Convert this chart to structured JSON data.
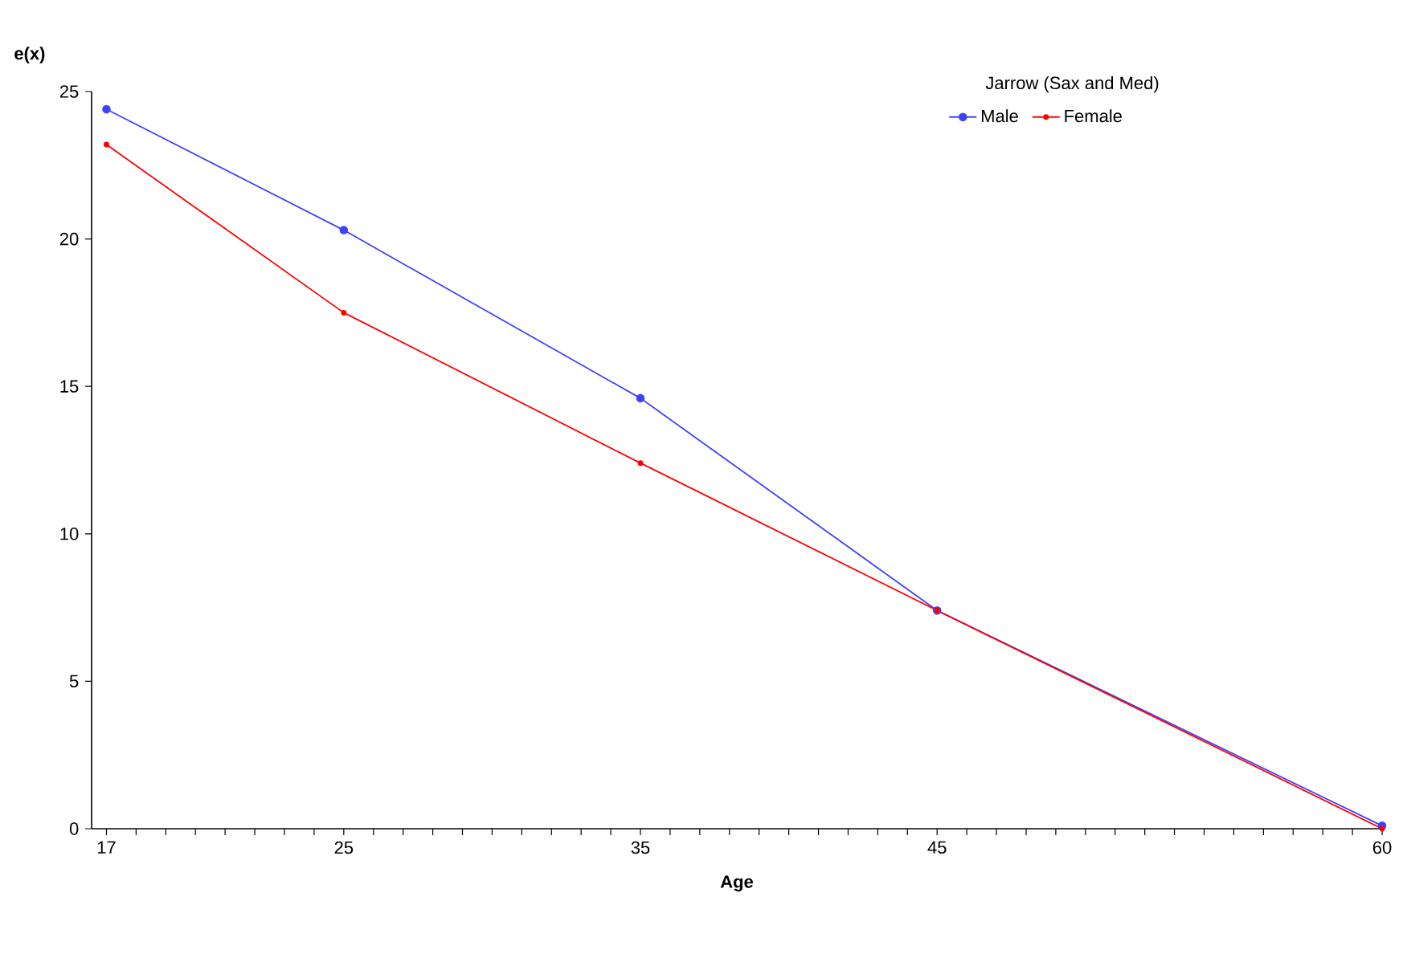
{
  "chart_data": {
    "type": "line",
    "xlabel": "Age",
    "ylabel": "e(x)",
    "legend_title": "Jarrow (Sax and Med)",
    "x": [
      17,
      25,
      35,
      45,
      60
    ],
    "series": [
      {
        "name": "Male",
        "color": "#4040ff",
        "values": [
          24.4,
          20.3,
          14.6,
          7.4,
          0.1
        ]
      },
      {
        "name": "Female",
        "color": "#ff0000",
        "values": [
          23.2,
          17.5,
          12.4,
          7.4,
          0
        ]
      }
    ],
    "xlim": [
      16.5,
      60
    ],
    "ylim": [
      0,
      25
    ],
    "xticks": [
      17,
      {
        "value": 18,
        "label": null
      },
      {
        "value": 19,
        "label": null
      },
      {
        "value": 20,
        "label": null
      },
      {
        "value": 21,
        "label": null
      },
      {
        "value": 22,
        "label": null
      },
      {
        "value": 23,
        "label": null
      },
      {
        "value": 24,
        "label": null
      },
      25,
      {
        "value": 26,
        "label": null
      },
      {
        "value": 27,
        "label": null
      },
      {
        "value": 28,
        "label": null
      },
      {
        "value": 29,
        "label": null
      },
      {
        "value": 30,
        "label": null
      },
      {
        "value": 31,
        "label": null
      },
      {
        "value": 32,
        "label": null
      },
      {
        "value": 33,
        "label": null
      },
      {
        "value": 34,
        "label": null
      },
      35,
      {
        "value": 36,
        "label": null
      },
      {
        "value": 37,
        "label": null
      },
      {
        "value": 38,
        "label": null
      },
      {
        "value": 39,
        "label": null
      },
      {
        "value": 40,
        "label": null
      },
      {
        "value": 41,
        "label": null
      },
      {
        "value": 42,
        "label": null
      },
      {
        "value": 43,
        "label": null
      },
      {
        "value": 44,
        "label": null
      },
      45,
      {
        "value": 46,
        "label": null
      },
      {
        "value": 47,
        "label": null
      },
      {
        "value": 48,
        "label": null
      },
      {
        "value": 49,
        "label": null
      },
      {
        "value": 50,
        "label": null
      },
      {
        "value": 51,
        "label": null
      },
      {
        "value": 52,
        "label": null
      },
      {
        "value": 53,
        "label": null
      },
      {
        "value": 54,
        "label": null
      },
      {
        "value": 55,
        "label": null
      },
      {
        "value": 56,
        "label": null
      },
      {
        "value": 57,
        "label": null
      },
      {
        "value": 58,
        "label": null
      },
      {
        "value": 59,
        "label": null
      },
      60
    ],
    "yticks": [
      0,
      5,
      10,
      15,
      20,
      25
    ],
    "grid": false,
    "legend": "top right",
    "marker": "circle",
    "line_style": "solid"
  }
}
